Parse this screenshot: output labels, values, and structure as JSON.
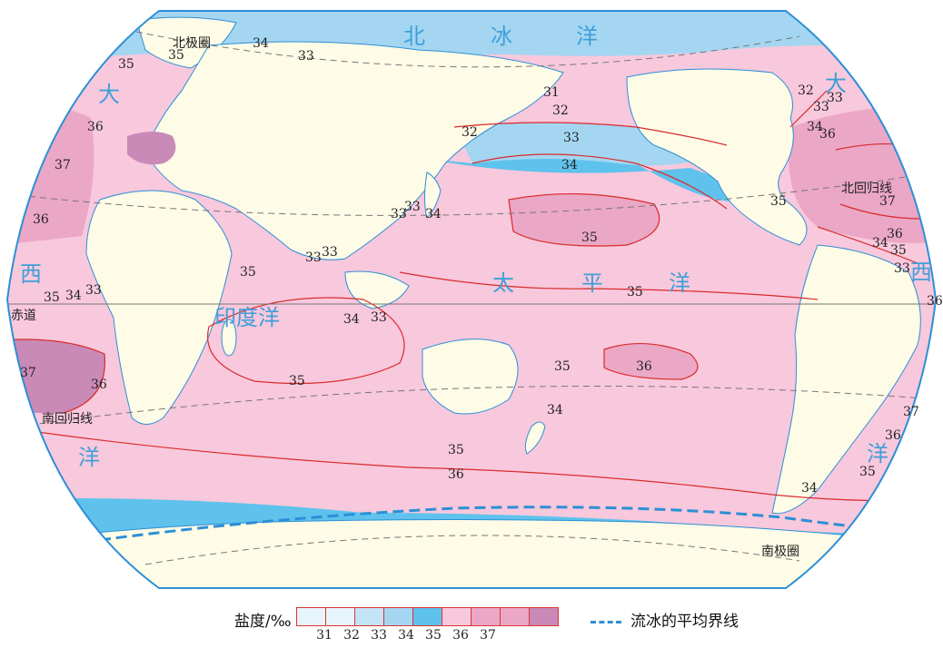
{
  "colors": {
    "ocean_31": "#e6f4fb",
    "ocean_32": "#c3e3f6",
    "ocean_33": "#a4d6f2",
    "ocean_34": "#5fc2ec",
    "ocean_35": "#f8c8dc",
    "ocean_36": "#eba7c6",
    "ocean_37": "#c98ab8",
    "land": "#fefbe6",
    "isoline": "#d92b2b",
    "river": "#2c8fd6",
    "ice_line": "#2c8fd6"
  },
  "oceans": {
    "arctic": [
      "北",
      "冰",
      "洋"
    ],
    "atlantic_west": [
      "大",
      "西",
      "洋"
    ],
    "atlantic_east": [
      "大",
      "西",
      "洋"
    ],
    "pacific": [
      "太",
      "平",
      "洋"
    ],
    "indian": "印度洋"
  },
  "geo_lines": {
    "arctic_circle": "北极圈",
    "tropic_cancer": "北回归线",
    "equator": "赤道",
    "tropic_capricorn": "南回归线",
    "antarctic_circle": "南极圈"
  },
  "isoline_labels": [
    "35",
    "35",
    "34",
    "33",
    "36",
    "37",
    "36",
    "35",
    "34",
    "33",
    "37",
    "36",
    "31",
    "32",
    "33",
    "34",
    "32",
    "33",
    "33",
    "34",
    "33",
    "33",
    "35",
    "35",
    "36",
    "35",
    "35",
    "34",
    "32",
    "33",
    "33",
    "34",
    "36",
    "35",
    "37",
    "36",
    "35",
    "34",
    "33",
    "36",
    "37",
    "36",
    "35",
    "34",
    "35",
    "36",
    "34",
    "33",
    "35"
  ],
  "legend": {
    "title": "盐度/‰",
    "values": [
      "31",
      "32",
      "33",
      "34",
      "35",
      "36",
      "37"
    ],
    "ice_label": "流冰的平均界线"
  }
}
